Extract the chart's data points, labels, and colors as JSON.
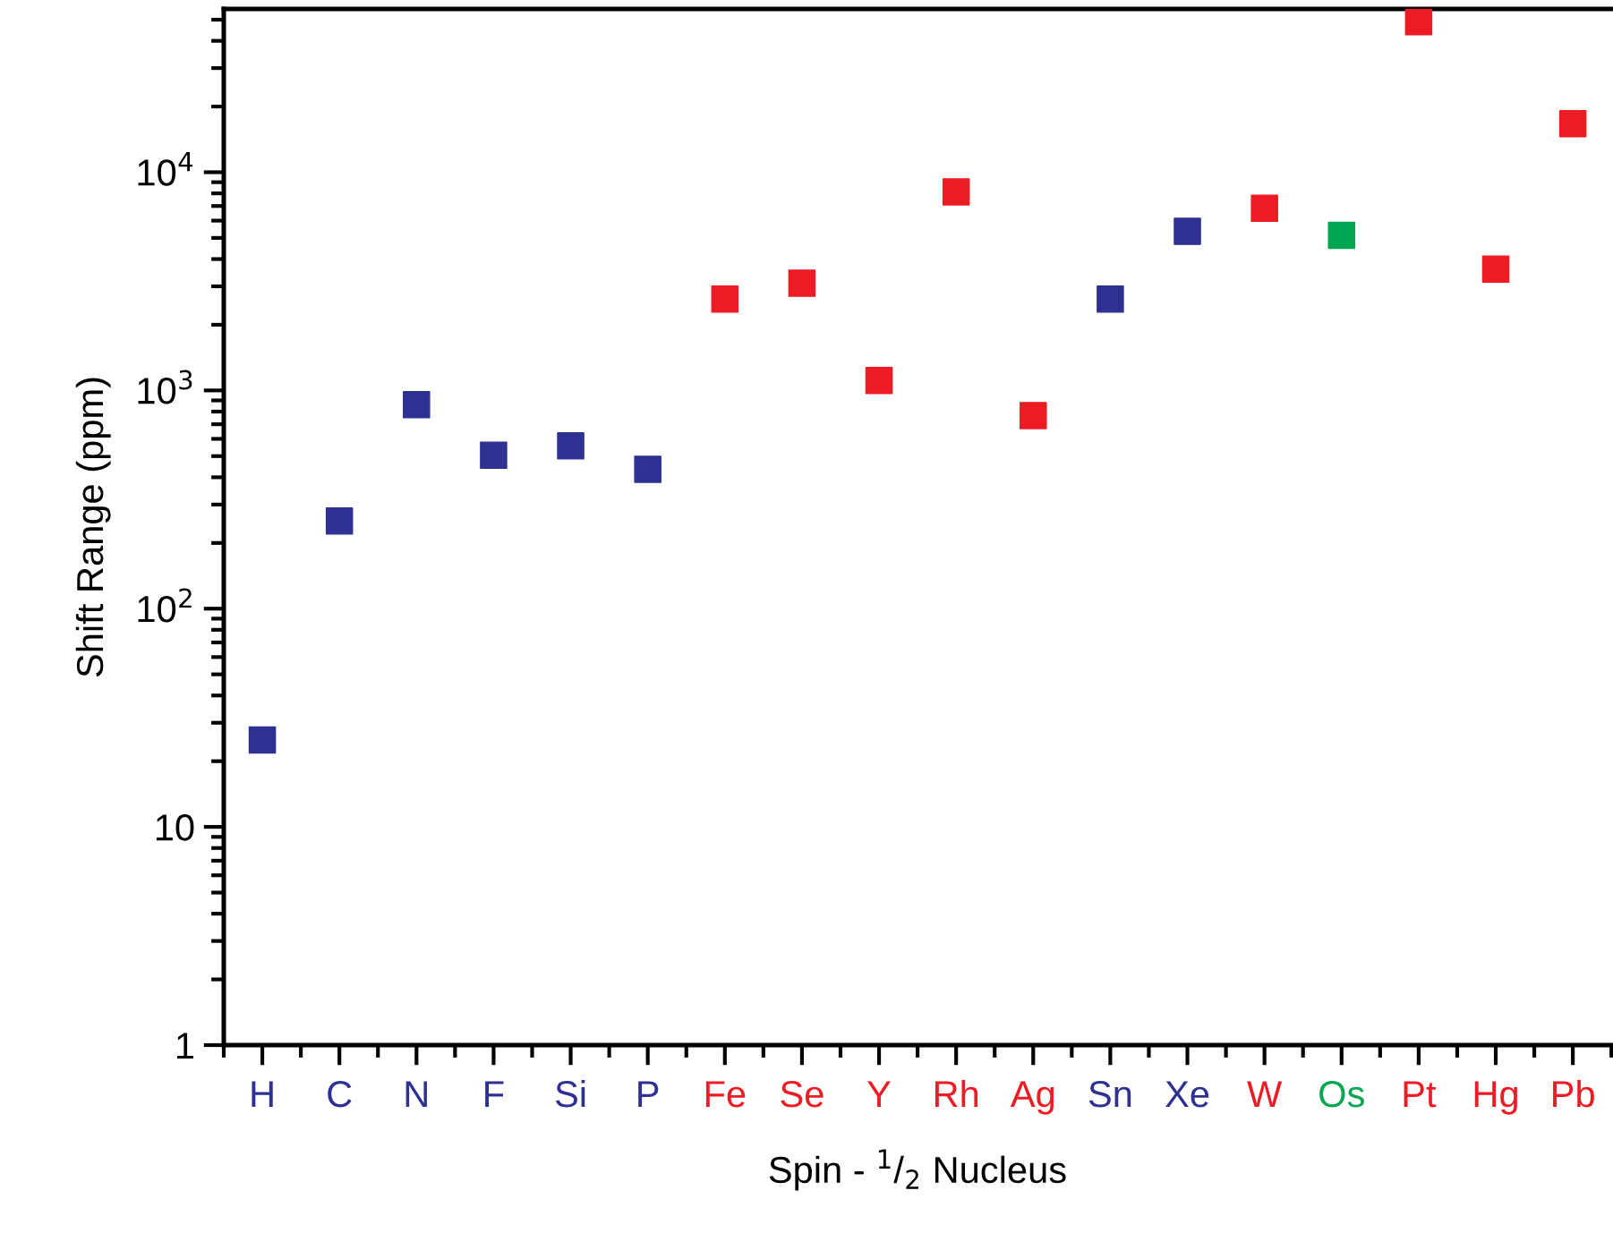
{
  "chart_data": {
    "type": "scatter",
    "xlabel": "Spin - $^{1}$/$_{2}$ Nucleus",
    "ylabel": "Shift Range (ppm)",
    "categories": [
      "H",
      "C",
      "N",
      "F",
      "Si",
      "P",
      "Fe",
      "Se",
      "Y",
      "Rh",
      "Ag",
      "Sn",
      "Xe",
      "W",
      "Os",
      "Pt",
      "Hg",
      "Pb"
    ],
    "values": [
      25,
      252,
      860,
      505,
      557,
      435,
      2620,
      3100,
      1110,
      8130,
      767,
      2620,
      5360,
      6830,
      5140,
      49000,
      3600,
      16700
    ],
    "colors": [
      "#2e3192",
      "#2e3192",
      "#2e3192",
      "#2e3192",
      "#2e3192",
      "#2e3192",
      "#ed1c24",
      "#ed1c24",
      "#ed1c24",
      "#ed1c24",
      "#ed1c24",
      "#2e3192",
      "#2e3192",
      "#ed1c24",
      "#00a651",
      "#ed1c24",
      "#ed1c24",
      "#ed1c24"
    ],
    "log": "y",
    "ylim": [
      1,
      56000
    ],
    "yticks": [
      1,
      10,
      {
        "value": 100,
        "label": "10$^{2}$"
      },
      {
        "value": 1000,
        "label": "10$^{3}$"
      },
      {
        "value": 10000,
        "label": "10$^{4}$"
      }
    ],
    "marker": "square",
    "grid": false,
    "legend": false
  }
}
